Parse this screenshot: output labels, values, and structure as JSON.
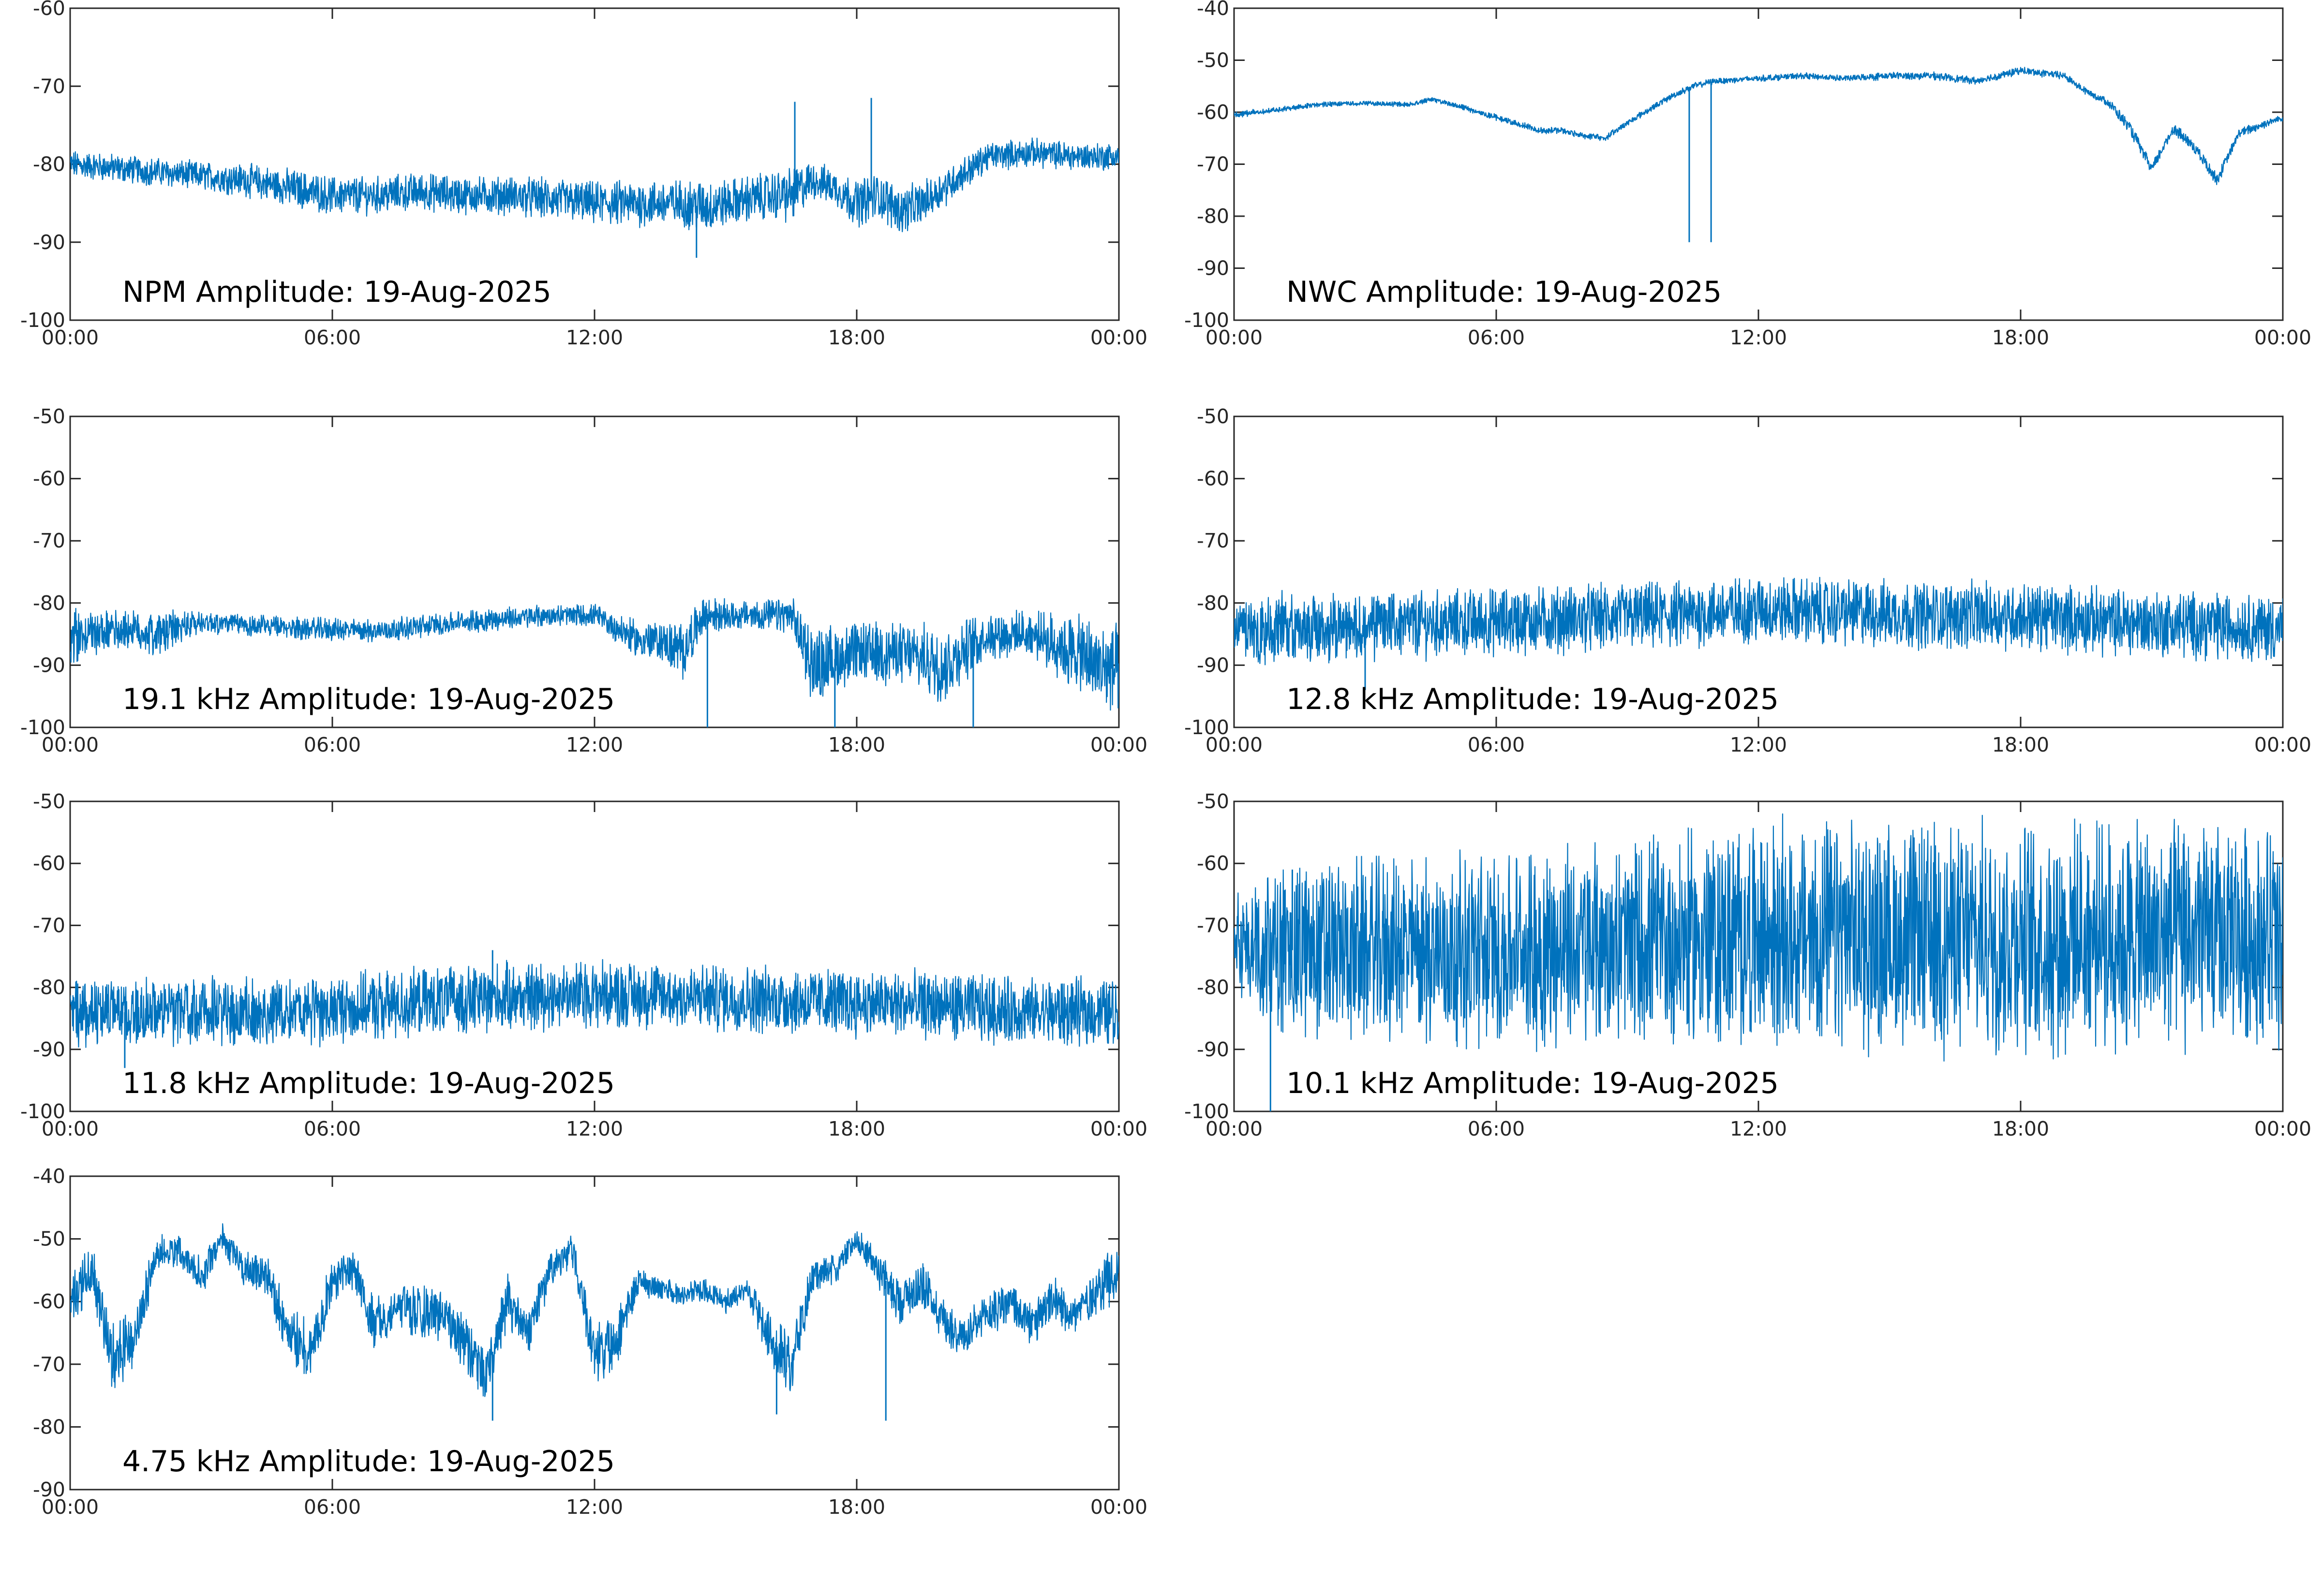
{
  "figure": {
    "background": "#ffffff",
    "line_color": "#0072bd",
    "frame_color": "#262626"
  },
  "chart_data": [
    {
      "type": "line",
      "title": "NPM Amplitude: 19-Aug-2025",
      "xlabel": "",
      "ylabel": "",
      "xlim": [
        "00:00",
        "24:00"
      ],
      "ylim": [
        -100,
        -60
      ],
      "xticks": [
        "00:00",
        "06:00",
        "12:00",
        "18:00",
        "00:00"
      ],
      "yticks": [
        "-100",
        "-90",
        "-80",
        "-70",
        "-60"
      ],
      "grid": false,
      "x": [
        "00:00",
        "01:00",
        "02:00",
        "03:00",
        "04:00",
        "05:00",
        "06:00",
        "07:00",
        "08:00",
        "09:00",
        "10:00",
        "11:00",
        "12:00",
        "13:00",
        "14:00",
        "14:30",
        "15:00",
        "16:00",
        "16:30",
        "17:00",
        "17:30",
        "18:00",
        "18:30",
        "19:00",
        "19:30",
        "20:00",
        "21:00",
        "22:00",
        "23:00",
        "24:00"
      ],
      "series": [
        {
          "center": [
            -80,
            -80.5,
            -81,
            -81.5,
            -82,
            -83,
            -84,
            -84,
            -83.5,
            -84,
            -84,
            -84.5,
            -85,
            -85,
            -85,
            -85.5,
            -85,
            -84,
            -84,
            -82,
            -83,
            -85,
            -84,
            -86,
            -85,
            -83,
            -79,
            -78.5,
            -79,
            -79
          ],
          "band": [
            3,
            3,
            3,
            3,
            3.5,
            4,
            4,
            4,
            4,
            4,
            4,
            4.5,
            4.5,
            5,
            5,
            6,
            5,
            5,
            6,
            4,
            4,
            5,
            5,
            5,
            4.5,
            4,
            3,
            3,
            3,
            3
          ]
        }
      ],
      "spikes": [
        {
          "x": "16:35",
          "y": -72
        },
        {
          "x": "18:20",
          "y": -71.5
        },
        {
          "x": "14:20",
          "y": -92
        }
      ]
    },
    {
      "type": "line",
      "title": "NWC Amplitude: 19-Aug-2025",
      "xlabel": "",
      "ylabel": "",
      "xlim": [
        "00:00",
        "24:00"
      ],
      "ylim": [
        -100,
        -40
      ],
      "xticks": [
        "00:00",
        "06:00",
        "12:00",
        "18:00",
        "00:00"
      ],
      "yticks": [
        "-100",
        "-90",
        "-80",
        "-70",
        "-60",
        "-50",
        "-40"
      ],
      "grid": false,
      "x": [
        "00:00",
        "01:00",
        "02:00",
        "03:00",
        "04:00",
        "04:30",
        "05:00",
        "06:00",
        "07:00",
        "07:30",
        "08:00",
        "08:30",
        "09:00",
        "10:00",
        "10:30",
        "11:00",
        "12:00",
        "13:00",
        "14:00",
        "15:00",
        "16:00",
        "17:00",
        "18:00",
        "19:00",
        "19:30",
        "20:00",
        "20:30",
        "21:00",
        "21:30",
        "22:00",
        "22:30",
        "23:00",
        "24:00"
      ],
      "series": [
        {
          "center": [
            -60.5,
            -59.5,
            -58.5,
            -58.3,
            -58.5,
            -57.5,
            -58.5,
            -61,
            -63.5,
            -63.5,
            -64.5,
            -65,
            -62,
            -57,
            -55,
            -54,
            -53.5,
            -53,
            -53.5,
            -53,
            -53,
            -54,
            -52,
            -53,
            -56,
            -58,
            -63,
            -71,
            -63,
            -67,
            -73,
            -64,
            -61
          ],
          "band": [
            1,
            0.8,
            0.8,
            0.8,
            0.8,
            0.8,
            0.8,
            1,
            1,
            1,
            1,
            1,
            1,
            1,
            1,
            1,
            1,
            1,
            1,
            1.2,
            1.2,
            1.2,
            1.2,
            1.2,
            1.2,
            1.5,
            2,
            2,
            2,
            2,
            2,
            1.5,
            1.2
          ]
        }
      ],
      "spikes": [
        {
          "x": "10:25",
          "y": -85
        },
        {
          "x": "10:55",
          "y": -85
        }
      ]
    },
    {
      "type": "line",
      "title": "19.1 kHz Amplitude: 19-Aug-2025",
      "xlabel": "",
      "ylabel": "",
      "xlim": [
        "00:00",
        "24:00"
      ],
      "ylim": [
        -100,
        -50
      ],
      "xticks": [
        "00:00",
        "06:00",
        "12:00",
        "18:00",
        "00:00"
      ],
      "yticks": [
        "-100",
        "-90",
        "-80",
        "-70",
        "-60",
        "-50"
      ],
      "grid": false,
      "x": [
        "00:00",
        "01:00",
        "02:00",
        "02:30",
        "03:00",
        "05:00",
        "07:00",
        "09:00",
        "11:00",
        "12:00",
        "13:00",
        "13:30",
        "14:00",
        "14:30",
        "15:00",
        "16:00",
        "16:30",
        "17:00",
        "18:00",
        "19:00",
        "20:00",
        "21:00",
        "22:00",
        "23:00",
        "23:30",
        "24:00"
      ],
      "series": [
        {
          "center": [
            -86,
            -84,
            -85,
            -84,
            -83,
            -84,
            -84.5,
            -83,
            -82,
            -82,
            -86,
            -86,
            -88,
            -82,
            -82,
            -82,
            -82,
            -90,
            -88,
            -88,
            -90,
            -85,
            -85,
            -88,
            -90,
            -91
          ],
          "band": [
            8,
            5,
            6,
            5,
            3,
            3,
            3,
            3,
            3,
            3,
            5,
            5,
            8,
            5,
            4,
            4,
            5,
            10,
            8,
            8,
            10,
            6,
            6,
            10,
            12,
            12
          ]
        }
      ],
      "spikes": [
        {
          "x": "14:35",
          "y": -100
        },
        {
          "x": "20:40",
          "y": -100
        },
        {
          "x": "17:30",
          "y": -100
        }
      ]
    },
    {
      "type": "line",
      "title": "12.8 kHz Amplitude: 19-Aug-2025",
      "xlabel": "",
      "ylabel": "",
      "xlim": [
        "00:00",
        "24:00"
      ],
      "ylim": [
        -100,
        -50
      ],
      "xticks": [
        "00:00",
        "06:00",
        "12:00",
        "18:00",
        "00:00"
      ],
      "yticks": [
        "-100",
        "-90",
        "-80",
        "-70",
        "-60",
        "-50"
      ],
      "grid": false,
      "x": [
        "00:00",
        "02:00",
        "04:00",
        "06:00",
        "08:00",
        "10:00",
        "12:00",
        "14:00",
        "16:00",
        "18:00",
        "20:00",
        "22:00",
        "24:00"
      ],
      "series": [
        {
          "center": [
            -84,
            -84,
            -83.5,
            -83,
            -82.5,
            -82,
            -81,
            -81.5,
            -82,
            -82,
            -83,
            -83.5,
            -84
          ],
          "band": [
            9,
            9,
            9,
            9,
            9,
            9,
            9,
            9,
            9,
            9,
            9,
            9,
            9
          ]
        }
      ],
      "spikes": [
        {
          "x": "03:00",
          "y": -94
        }
      ]
    },
    {
      "type": "line",
      "title": "11.8 kHz Amplitude: 19-Aug-2025",
      "xlabel": "",
      "ylabel": "",
      "xlim": [
        "00:00",
        "24:00"
      ],
      "ylim": [
        -100,
        -50
      ],
      "xticks": [
        "00:00",
        "06:00",
        "12:00",
        "18:00",
        "00:00"
      ],
      "yticks": [
        "-100",
        "-90",
        "-80",
        "-70",
        "-60",
        "-50"
      ],
      "grid": false,
      "x": [
        "00:00",
        "02:00",
        "04:00",
        "06:00",
        "08:00",
        "10:00",
        "12:00",
        "14:00",
        "16:00",
        "18:00",
        "20:00",
        "22:00",
        "24:00"
      ],
      "series": [
        {
          "center": [
            -84,
            -84,
            -84,
            -83.5,
            -82.5,
            -81.5,
            -81,
            -81.5,
            -82,
            -82.5,
            -83,
            -84,
            -84
          ],
          "band": [
            9,
            9,
            9,
            9,
            9,
            9,
            9,
            9,
            9,
            9,
            9,
            9,
            9
          ]
        }
      ],
      "spikes": [
        {
          "x": "09:40",
          "y": -74
        },
        {
          "x": "01:15",
          "y": -93
        }
      ]
    },
    {
      "type": "line",
      "title": "10.1 kHz Amplitude: 19-Aug-2025",
      "xlabel": "",
      "ylabel": "",
      "xlim": [
        "00:00",
        "24:00"
      ],
      "ylim": [
        -100,
        -50
      ],
      "xticks": [
        "00:00",
        "06:00",
        "12:00",
        "18:00",
        "00:00"
      ],
      "yticks": [
        "-100",
        "-90",
        "-80",
        "-70",
        "-60",
        "-50"
      ],
      "grid": false,
      "x": [
        "00:00",
        "01:00",
        "03:00",
        "06:00",
        "09:00",
        "12:00",
        "15:00",
        "18:00",
        "21:00",
        "24:00"
      ],
      "series": [
        {
          "center": [
            -72,
            -74,
            -74,
            -74,
            -73,
            -72,
            -72,
            -72,
            -72,
            -72
          ],
          "band": [
            14,
            24,
            24,
            26,
            28,
            30,
            30,
            30,
            30,
            30
          ]
        }
      ],
      "spikes": [
        {
          "x": "00:50",
          "y": -100
        },
        {
          "x": "01:20",
          "y": -61
        }
      ]
    },
    {
      "type": "line",
      "title": "4.75 kHz Amplitude: 19-Aug-2025",
      "xlabel": "",
      "ylabel": "",
      "xlim": [
        "00:00",
        "24:00"
      ],
      "ylim": [
        -90,
        -40
      ],
      "xticks": [
        "00:00",
        "06:00",
        "12:00",
        "18:00",
        "00:00"
      ],
      "yticks": [
        "-90",
        "-80",
        "-70",
        "-60",
        "-50",
        "-40"
      ],
      "grid": false,
      "x": [
        "00:00",
        "00:30",
        "01:00",
        "01:30",
        "02:00",
        "02:30",
        "03:00",
        "03:30",
        "04:00",
        "04:30",
        "05:00",
        "05:30",
        "06:00",
        "06:30",
        "07:00",
        "07:30",
        "08:00",
        "08:30",
        "09:00",
        "09:30",
        "10:00",
        "10:30",
        "11:00",
        "11:30",
        "12:00",
        "12:30",
        "13:00",
        "13:30",
        "14:00",
        "14:30",
        "15:00",
        "15:30",
        "16:00",
        "16:30",
        "17:00",
        "17:30",
        "18:00",
        "18:30",
        "19:00",
        "19:30",
        "20:00",
        "20:30",
        "21:00",
        "21:30",
        "22:00",
        "22:30",
        "23:00",
        "23:30",
        "24:00"
      ],
      "series": [
        {
          "center": [
            -60,
            -55,
            -70,
            -65,
            -52,
            -52,
            -56,
            -50,
            -55,
            -56,
            -65,
            -68,
            -57,
            -55,
            -64,
            -60,
            -62,
            -62,
            -66,
            -72,
            -60,
            -65,
            -55,
            -52,
            -68,
            -66,
            -57,
            -58,
            -59,
            -58,
            -60,
            -58,
            -66,
            -70,
            -56,
            -55,
            -50,
            -55,
            -60,
            -57,
            -63,
            -66,
            -62,
            -60,
            -64,
            -60,
            -62,
            -58,
            -55
          ],
          "band": [
            8,
            6,
            10,
            8,
            5,
            4,
            5,
            4,
            5,
            5,
            8,
            8,
            6,
            5,
            7,
            6,
            7,
            7,
            8,
            8,
            7,
            7,
            5,
            4,
            8,
            8,
            4,
            3,
            3,
            3,
            3,
            3,
            7,
            8,
            5,
            4,
            3,
            5,
            6,
            6,
            6,
            6,
            6,
            6,
            6,
            6,
            6,
            6,
            8
          ]
        }
      ],
      "spikes": [
        {
          "x": "09:40",
          "y": -79
        },
        {
          "x": "16:10",
          "y": -78
        },
        {
          "x": "18:40",
          "y": -79
        }
      ]
    }
  ]
}
